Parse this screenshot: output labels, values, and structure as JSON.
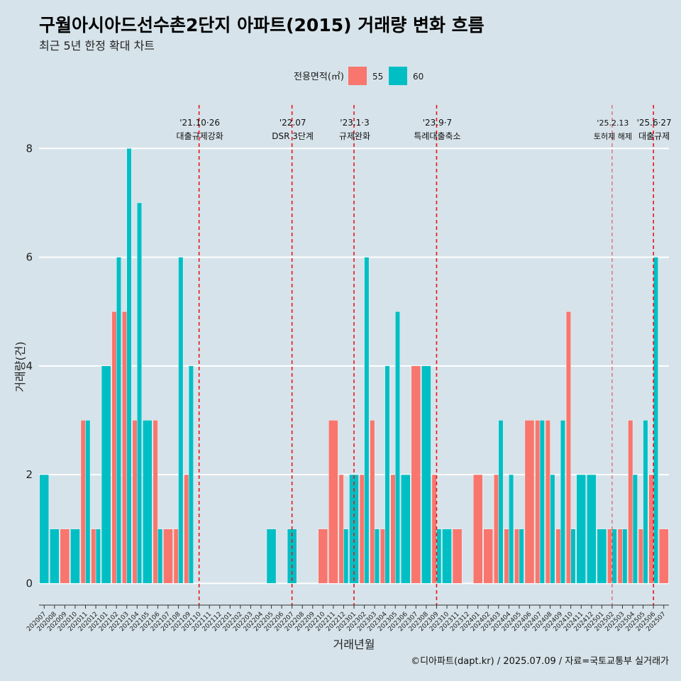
{
  "chart_data": {
    "type": "bar",
    "title": "구월아시아드선수촌2단지 아파트(2015) 거래량 변화 흐름",
    "subtitle": "최근 5년 한정 확대 차트",
    "xlabel": "거래년월",
    "ylabel": "거래량(건)",
    "ylim": [
      -0.4,
      8.8
    ],
    "yticks": [
      0,
      2,
      4,
      6,
      8
    ],
    "grid": true,
    "legend": {
      "title": "전용면적(㎡)",
      "position": "top"
    },
    "categories": [
      "202007",
      "202008",
      "202009",
      "202010",
      "202011",
      "202012",
      "202101",
      "202102",
      "202103",
      "202104",
      "202105",
      "202106",
      "202107",
      "202108",
      "202109",
      "202110",
      "202111",
      "202112",
      "202201",
      "202202",
      "202203",
      "202204",
      "202205",
      "202206",
      "202207",
      "202208",
      "202209",
      "202210",
      "202211",
      "202212",
      "202301",
      "202302",
      "202303",
      "202304",
      "202305",
      "202306",
      "202307",
      "202308",
      "202309",
      "202310",
      "202311",
      "202312",
      "202401",
      "202402",
      "202403",
      "202404",
      "202405",
      "202406",
      "202407",
      "202408",
      "202409",
      "202410",
      "202411",
      "202412",
      "202501",
      "202502",
      "202503",
      "202504",
      "202505",
      "202506",
      "202507"
    ],
    "series": [
      {
        "name": "55",
        "color": "#F8766D",
        "values": [
          0,
          0,
          1,
          0,
          3,
          1,
          0,
          5,
          5,
          3,
          0,
          3,
          1,
          1,
          2,
          0,
          0,
          0,
          0,
          0,
          0,
          0,
          0,
          0,
          0,
          0,
          0,
          1,
          3,
          2,
          0,
          2,
          3,
          1,
          2,
          0,
          4,
          0,
          2,
          0,
          1,
          0,
          2,
          1,
          2,
          1,
          1,
          3,
          3,
          3,
          1,
          5,
          0,
          0,
          0,
          1,
          1,
          3,
          1,
          2,
          1
        ]
      },
      {
        "name": "60",
        "color": "#00BFC4",
        "values": [
          2,
          1,
          0,
          1,
          3,
          1,
          4,
          6,
          8,
          7,
          3,
          1,
          0,
          6,
          4,
          0,
          0,
          0,
          0,
          0,
          0,
          0,
          1,
          0,
          1,
          0,
          0,
          0,
          0,
          1,
          2,
          6,
          1,
          4,
          5,
          2,
          0,
          4,
          1,
          1,
          0,
          0,
          0,
          0,
          3,
          2,
          1,
          0,
          3,
          2,
          3,
          1,
          2,
          2,
          1,
          1,
          1,
          2,
          3,
          6,
          0
        ]
      }
    ],
    "annotations": [
      {
        "x": "202110",
        "date": "'21.10·26",
        "label": "대출규제강화",
        "minor": false
      },
      {
        "x": "202207",
        "date": "'22.07",
        "label": "DSR 3단계",
        "minor": false
      },
      {
        "x": "202301",
        "date": "'23.1·3",
        "label": "규제완화",
        "minor": false
      },
      {
        "x": "202309",
        "date": "'23.9·7",
        "label": "특례대출축소",
        "minor": false
      },
      {
        "x": "202502",
        "date": "'25.2.13",
        "label": "토허제 해제",
        "minor": true
      },
      {
        "x": "202506",
        "date": "'25.6·27",
        "label": "대출규제",
        "minor": false
      }
    ],
    "caption": "©디아파트(dapt.kr) / 2025.07.09 / 자료=국토교통부 실거래가"
  },
  "colors": {
    "background": "#D6E3EA",
    "grid": "#FFFFFF",
    "annotation": "#E8141B",
    "axis": "#333333"
  }
}
